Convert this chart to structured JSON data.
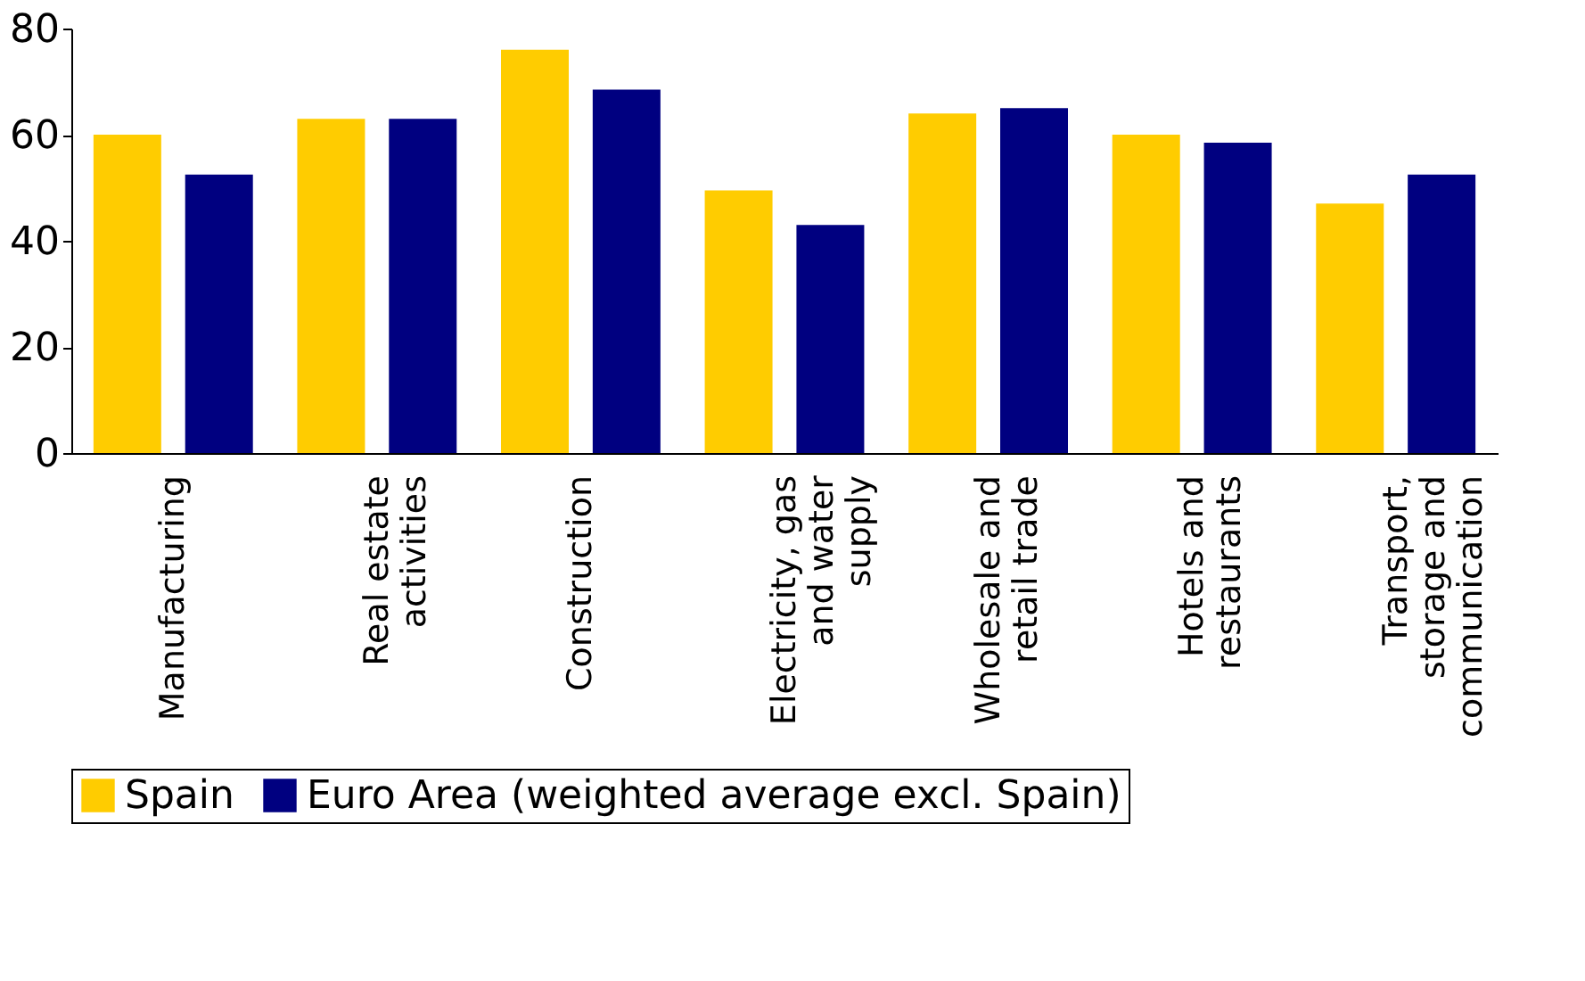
{
  "chart_data": {
    "type": "bar",
    "categories": [
      "Manufacturing",
      "Real estate\nactivities",
      "Construction",
      "Electricity, gas\nand water\nsupply",
      "Wholesale and\nretail trade",
      "Hotels and\nrestaurants",
      "Transport,\nstorage and\ncommunication"
    ],
    "series": [
      {
        "name": "Spain",
        "color": "#ffcc00",
        "values": [
          60,
          63,
          76,
          49.5,
          64,
          60,
          47
        ]
      },
      {
        "name": "Euro Area (weighted average excl. Spain)",
        "color": "#000080",
        "values": [
          52.5,
          63,
          68.5,
          43,
          65,
          58.5,
          52.5
        ]
      }
    ],
    "ylim": [
      0,
      80
    ],
    "yticks": [
      0,
      20,
      40,
      60,
      80
    ],
    "grid": false,
    "legend": "bottom"
  }
}
